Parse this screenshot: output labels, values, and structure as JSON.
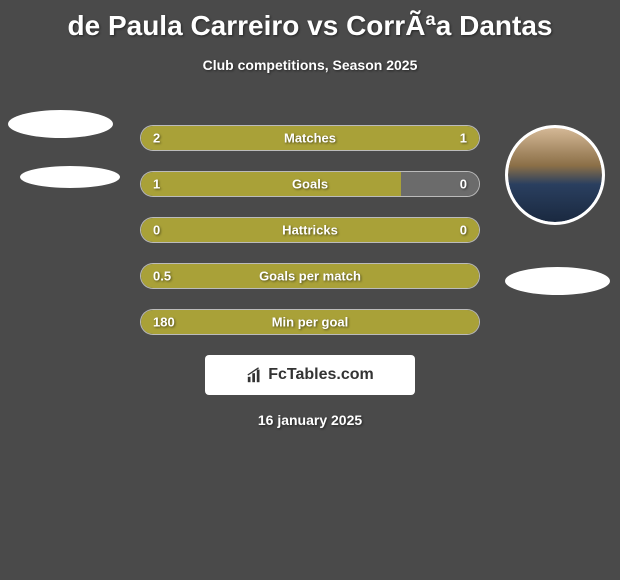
{
  "header": {
    "title": "de Paula Carreiro vs CorrÃªa Dantas",
    "subtitle": "Club competitions, Season 2025"
  },
  "colors": {
    "bar_left": "#a9a138",
    "bar_right": "#a9a138",
    "bar_alt": "#6b6b6b",
    "background": "#4a4a4a"
  },
  "stats": [
    {
      "label": "Matches",
      "left_value": "2",
      "right_value": "1",
      "left_pct": 78,
      "right_pct": 22
    },
    {
      "label": "Goals",
      "left_value": "1",
      "right_value": "0",
      "left_pct": 77,
      "right_pct": 23
    },
    {
      "label": "Hattricks",
      "left_value": "0",
      "right_value": "0",
      "left_pct": 100,
      "right_pct": 0
    },
    {
      "label": "Goals per match",
      "left_value": "0.5",
      "right_value": "",
      "left_pct": 100,
      "right_pct": 0
    },
    {
      "label": "Min per goal",
      "left_value": "180",
      "right_value": "",
      "left_pct": 100,
      "right_pct": 0
    }
  ],
  "stat_row_config": [
    {
      "left_color": "#a9a138",
      "right_color": "#a9a138",
      "use_alt_right": false
    },
    {
      "left_color": "#a9a138",
      "right_color": "#6b6b6b",
      "use_alt_right": true
    },
    {
      "left_color": "#a9a138",
      "right_color": "#a9a138",
      "use_alt_right": false
    },
    {
      "left_color": "#a9a138",
      "right_color": "#a9a138",
      "use_alt_right": false
    },
    {
      "left_color": "#a9a138",
      "right_color": "#a9a138",
      "use_alt_right": false
    }
  ],
  "logo": {
    "text": "FcTables.com",
    "icon": "chart-icon"
  },
  "footer": {
    "date": "16 january 2025"
  }
}
